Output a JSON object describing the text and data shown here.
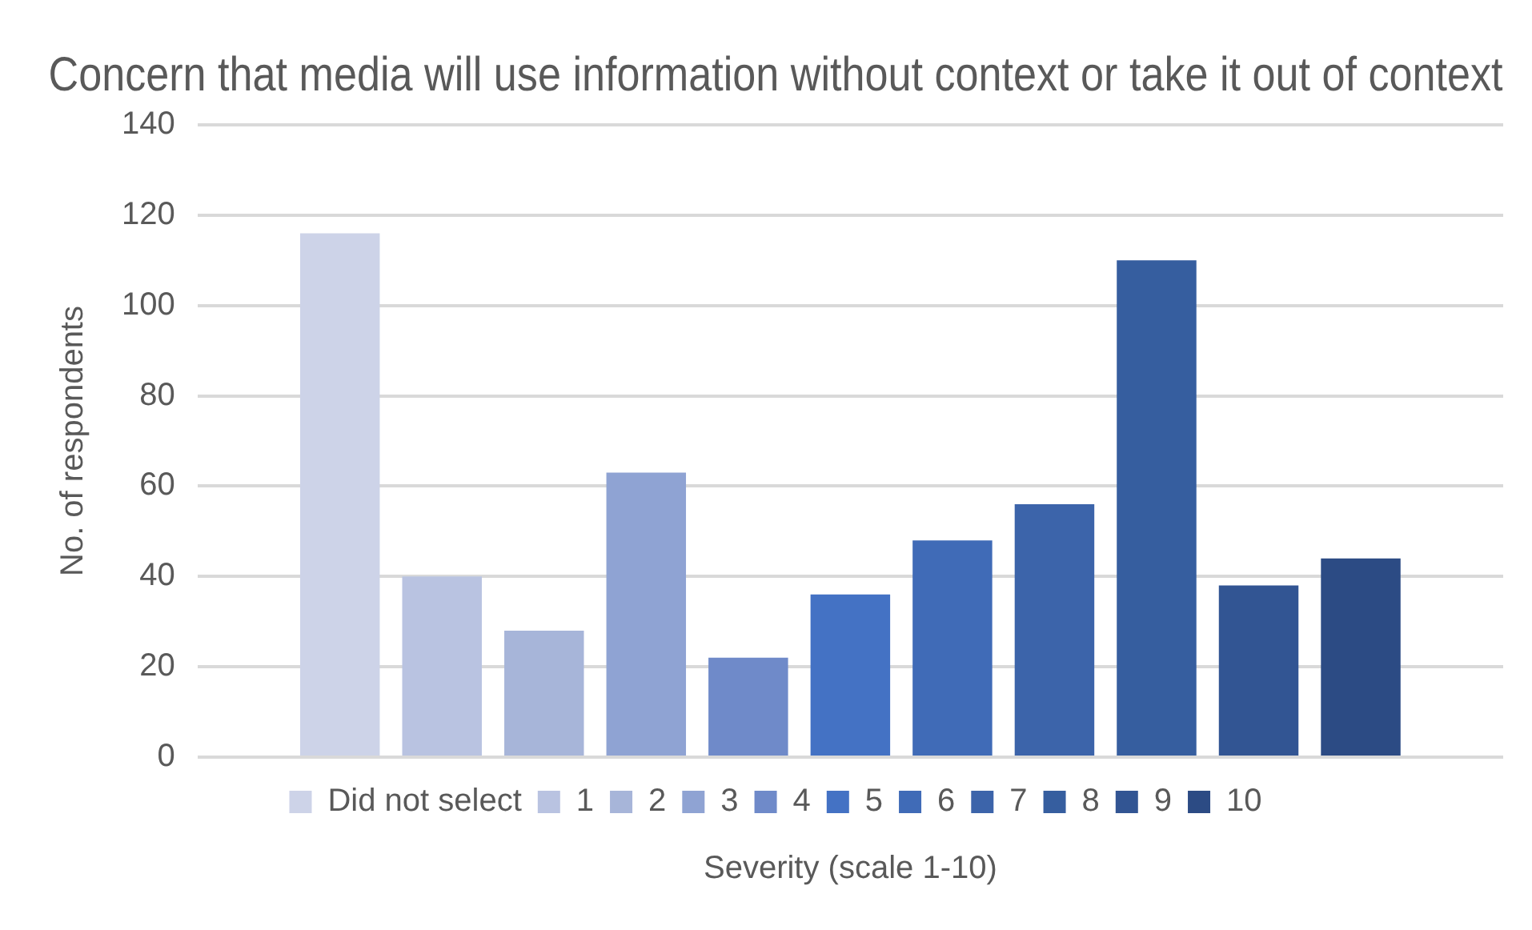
{
  "chart_data": {
    "type": "bar",
    "title": "Concern that media will use information without context or take it out of context",
    "xlabel": "Severity (scale 1-10)",
    "ylabel": "No. of respondents",
    "categories": [
      null
    ],
    "series": [
      {
        "name": "Did not select",
        "color": "#cdd3e8",
        "values": [
          116
        ]
      },
      {
        "name": "1",
        "color": "#b9c3e1",
        "values": [
          40
        ]
      },
      {
        "name": "2",
        "color": "#a7b5d9",
        "values": [
          28
        ]
      },
      {
        "name": "3",
        "color": "#8fa3d3",
        "values": [
          63
        ]
      },
      {
        "name": "4",
        "color": "#6f8ac9",
        "values": [
          22
        ]
      },
      {
        "name": "5",
        "color": "#4472c4",
        "values": [
          36
        ]
      },
      {
        "name": "6",
        "color": "#406bb7",
        "values": [
          48
        ]
      },
      {
        "name": "7",
        "color": "#3c64aa",
        "values": [
          56
        ]
      },
      {
        "name": "8",
        "color": "#365e9f",
        "values": [
          110
        ]
      },
      {
        "name": "9",
        "color": "#325593",
        "values": [
          38
        ]
      },
      {
        "name": "10",
        "color": "#2c4b84",
        "values": [
          44
        ]
      }
    ],
    "ylim": [
      0,
      140
    ],
    "yticks": [
      0,
      20,
      40,
      60,
      80,
      100,
      120,
      140
    ],
    "grid": "y",
    "legend": "bottom"
  }
}
